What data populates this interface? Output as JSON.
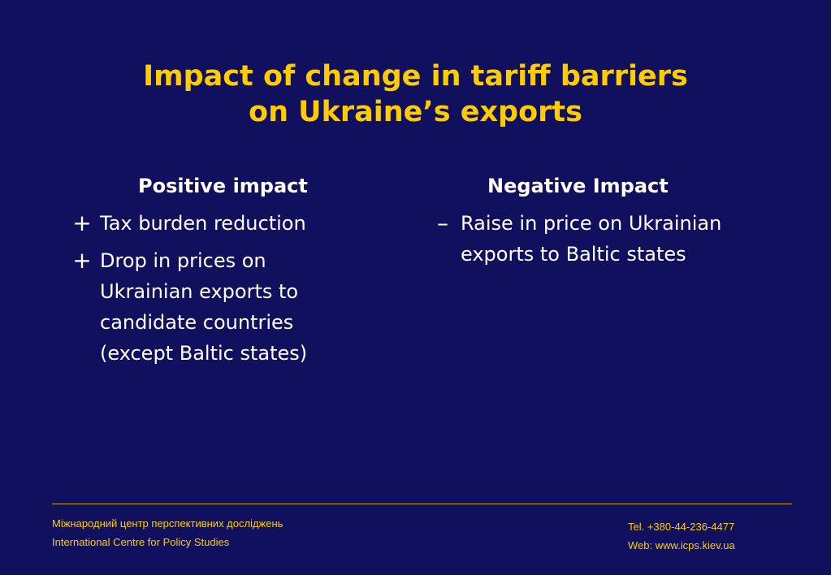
{
  "slide": {
    "title_lines": [
      "Impact of change in tariff barriers",
      "on Ukraine’s exports"
    ],
    "positive": {
      "heading": "Positive impact",
      "items": [
        {
          "symbol": "+",
          "symbol_icon": "plus-icon",
          "lines": [
            "Tax burden reduction"
          ]
        },
        {
          "symbol": "+",
          "symbol_icon": "plus-icon",
          "lines": [
            "Drop in prices on",
            "Ukrainian exports to",
            "candidate countries",
            "(except Baltic states)"
          ]
        }
      ]
    },
    "negative": {
      "heading": "Negative Impact",
      "items": [
        {
          "symbol": "–",
          "symbol_icon": "minus-icon",
          "lines": [
            "Raise in price on Ukrainian",
            "exports to Baltic states"
          ]
        }
      ]
    }
  },
  "footer": {
    "org_ukrainian": "Міжнародний центр перспективних досліджень",
    "org_english": "International Centre for Policy Studies",
    "phone": "Tel. +380-44-236-4477",
    "web": "Web: www.icps.kiev.ua"
  },
  "colors": {
    "background": "#10105e",
    "title": "#ffcc00",
    "body_text": "#ffffff",
    "footer_text": "#ffcc00",
    "rule": "#c9a100"
  }
}
